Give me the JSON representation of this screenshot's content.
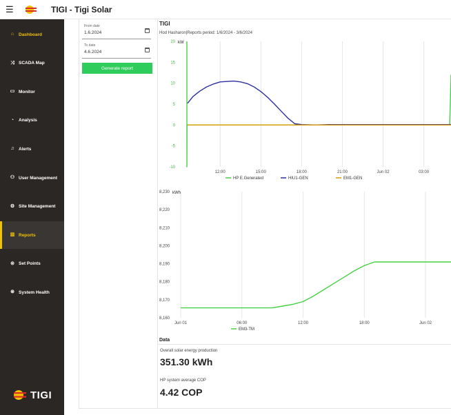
{
  "app": {
    "title": "TIGI - Tigi Solar",
    "logo_text": "TIGI"
  },
  "sidebar": {
    "items": [
      {
        "label": "Dashboard",
        "icon": "home-icon",
        "glyph": "⌂",
        "yellow": true
      },
      {
        "label": "SCADA Map",
        "icon": "shuffle-icon",
        "glyph": "⤨"
      },
      {
        "label": "Monitor",
        "icon": "monitor-icon",
        "glyph": "▭"
      },
      {
        "label": "Analysis",
        "icon": "chart-icon",
        "glyph": "◔"
      },
      {
        "label": "Alerts",
        "icon": "bell-icon",
        "glyph": "♫"
      },
      {
        "label": "User Management",
        "icon": "user-icon",
        "glyph": "⚇"
      },
      {
        "label": "Site Management",
        "icon": "gear-icon",
        "glyph": "⚙"
      },
      {
        "label": "Reports",
        "icon": "bar-chart-icon",
        "glyph": "▥",
        "active": true,
        "yellow": true
      },
      {
        "label": "Set Points",
        "icon": "target-icon",
        "glyph": "⊚"
      },
      {
        "label": "System Health",
        "icon": "health-icon",
        "glyph": "⊛"
      }
    ]
  },
  "filters": {
    "from_label": "From date",
    "from_value": "1.6.2024",
    "to_label": "To date",
    "to_value": "4.6.2024",
    "generate_label": "Generate report"
  },
  "report": {
    "title": "TIGI",
    "subtitle": "Hod Hasharon|Reports period: 1/6/2024 - 3/6/2024"
  },
  "chart_data": [
    {
      "type": "line",
      "ylabel": "kW",
      "ylim": [
        -10,
        20
      ],
      "y_ticks": [
        "20",
        "15",
        "10",
        "5",
        "0",
        "-5",
        "-10"
      ],
      "x_ticks": [
        "12:00",
        "15:00",
        "18:00",
        "21:00",
        "Jun 02",
        "03:00"
      ],
      "x_tick_hours": [
        12,
        15,
        18,
        21,
        24,
        27
      ],
      "xlim_hours": [
        9.5,
        29
      ],
      "grid": true,
      "series": [
        {
          "name": "HP E.Generated",
          "color": "#44d044",
          "x": [
            9.55,
            9.55,
            9.56,
            28.9,
            28.95,
            29
          ],
          "y": [
            20,
            -10,
            0,
            0,
            5,
            12
          ]
        },
        {
          "name": "HIU1-GEN",
          "color": "#2b2f9e",
          "x": [
            9.6,
            10,
            10.5,
            11,
            11.5,
            12,
            12.5,
            13,
            13.5,
            14,
            14.5,
            15,
            15.5,
            16,
            16.5,
            17,
            17.5,
            18,
            19,
            20,
            21,
            22,
            23,
            24,
            25,
            26,
            27,
            28,
            29
          ],
          "y": [
            5.2,
            6.8,
            8.1,
            9.1,
            9.8,
            10.3,
            10.4,
            10.5,
            10.3,
            9.9,
            9.1,
            8.0,
            6.6,
            5.0,
            3.3,
            1.6,
            0.3,
            0.1,
            0.0,
            0.1,
            0.1,
            0.1,
            0.1,
            0.1,
            0.1,
            0.1,
            0.1,
            0.1,
            0.1
          ]
        },
        {
          "name": "EM1-GEN",
          "color": "#d99a00",
          "x": [
            9.6,
            29
          ],
          "y": [
            0,
            0
          ]
        }
      ]
    },
    {
      "type": "line",
      "ylabel": "kWh",
      "ylim": [
        8160,
        8230
      ],
      "y_ticks": [
        "8,230",
        "8,220",
        "8,210",
        "8,200",
        "8,190",
        "8,180",
        "8,170",
        "8,160"
      ],
      "x_ticks": [
        "Jun 01",
        "06:00",
        "12:00",
        "18:00",
        "Jun 02"
      ],
      "x_tick_hours": [
        0,
        6,
        12,
        18,
        24
      ],
      "xlim_hours": [
        0,
        26.5
      ],
      "grid": true,
      "series": [
        {
          "name": "EM3-TM",
          "color": "#44d044",
          "x": [
            0,
            5,
            9,
            10,
            11,
            12,
            13,
            14,
            15,
            16,
            17,
            18,
            18.5,
            19,
            20,
            22,
            24,
            26.5
          ],
          "y": [
            8165.5,
            8165.5,
            8165.5,
            8166.5,
            8167.5,
            8169,
            8172,
            8175.5,
            8179,
            8182.5,
            8186,
            8189,
            8190,
            8191,
            8191,
            8191,
            8191,
            8191
          ]
        }
      ]
    }
  ],
  "stats": {
    "section_title": "Data",
    "solar_label": "Overall solar energy production",
    "solar_value": "351.30 kWh",
    "cop_label": "HP system average COP",
    "cop_value": "4.42 COP"
  },
  "colors": {
    "accent": "#f2c200",
    "sidebar": "#2b2725",
    "button": "#2ecc5b"
  }
}
